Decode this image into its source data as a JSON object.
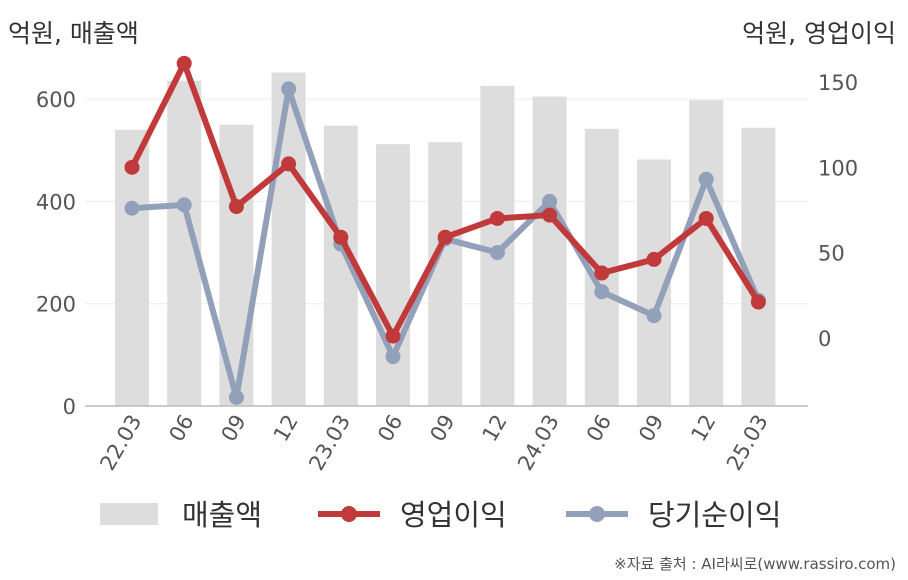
{
  "chart_data": {
    "type": "bar+line",
    "left_unit": "억원, 매출액",
    "right_unit": "억원, 영업이익",
    "categories": [
      "22.03",
      "06",
      "09",
      "12",
      "23.03",
      "06",
      "09",
      "12",
      "24.03",
      "06",
      "09",
      "12",
      "25.03"
    ],
    "left_axis": {
      "ylim": [
        0,
        700
      ],
      "ticks": [
        0,
        200,
        400,
        600
      ]
    },
    "right_axis": {
      "ylim": [
        -40,
        170
      ],
      "ticks": [
        0,
        50,
        100,
        150
      ]
    },
    "series": [
      {
        "name": "매출액",
        "type": "bar",
        "axis": "left",
        "color": "#dddddd",
        "values": [
          540,
          636,
          550,
          652,
          548,
          512,
          516,
          626,
          605,
          542,
          482,
          598,
          544
        ]
      },
      {
        "name": "영업이익",
        "type": "line",
        "axis": "right",
        "color": "#c0393b",
        "values": [
          100,
          161,
          77,
          102,
          59,
          1,
          59,
          70,
          72,
          38,
          46,
          70,
          21
        ]
      },
      {
        "name": "당기순이익",
        "type": "line",
        "axis": "right",
        "color": "#93a0ba",
        "values": [
          76,
          78,
          -35,
          146,
          55,
          -11,
          58,
          50,
          80,
          27,
          13,
          93,
          22
        ]
      }
    ],
    "grid": true,
    "legend_position": "bottom"
  },
  "source_text": "※자료 출처 : AI라씨로(www.rassiro.com)"
}
